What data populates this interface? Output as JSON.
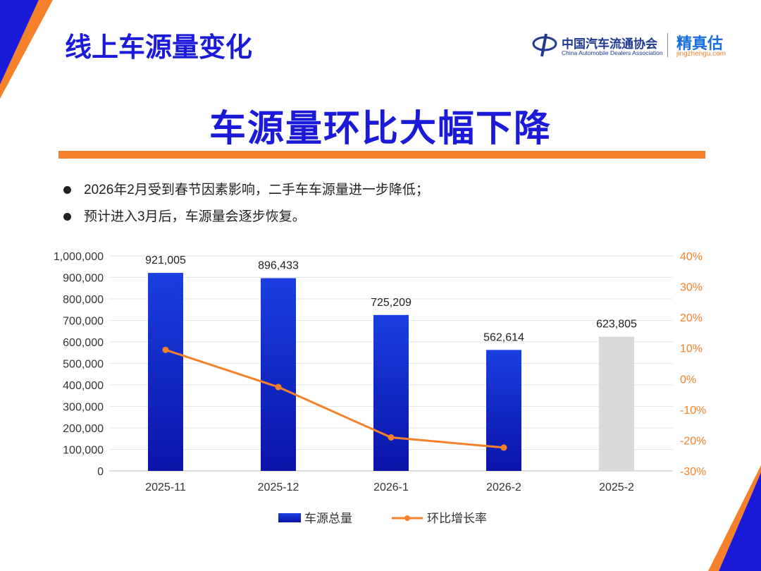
{
  "header": {
    "title": "线上车源量变化",
    "headline": "车源量环比大幅下降"
  },
  "logo": {
    "org_cn": "中国汽车流通协会",
    "org_en": "China Automobile Dealers Association",
    "brand_cn": "精真估",
    "brand_url": "jingzhengu.com"
  },
  "bullets": [
    "2026年2月受到春节因素影响，二手车车源量进一步降低；",
    "预计进入3月后，车源量会逐步恢复。"
  ],
  "colors": {
    "accent": "#1a1ad8",
    "orange": "#f5822a",
    "bar_top": "#1a3ee0",
    "bar_bottom": "#0a14a8",
    "gray_bar": "#d9d9d9"
  },
  "chart_data": {
    "type": "bar",
    "categories": [
      "2025-11",
      "2025-12",
      "2026-1",
      "2026-2",
      "2025-2"
    ],
    "series": [
      {
        "name": "车源总量",
        "type": "bar",
        "axis": "left",
        "values": [
          921005,
          896433,
          725209,
          562614,
          623805
        ],
        "labels": [
          "921,005",
          "896,433",
          "725,209",
          "562,614",
          "623,805"
        ],
        "highlight": [
          false,
          false,
          false,
          false,
          true
        ]
      },
      {
        "name": "环比增长率",
        "type": "line",
        "axis": "right",
        "values": [
          9.4,
          -2.7,
          -19.1,
          -22.4,
          null
        ]
      }
    ],
    "ylim": [
      0,
      1000000
    ],
    "yticks": [
      "0",
      "100,000",
      "200,000",
      "300,000",
      "400,000",
      "500,000",
      "600,000",
      "700,000",
      "800,000",
      "900,000",
      "1,000,000"
    ],
    "y2lim": [
      -30,
      40
    ],
    "y2ticks": [
      "-30%",
      "-20%",
      "-10%",
      "0%",
      "10%",
      "20%",
      "30%",
      "40%"
    ],
    "grid": true,
    "legend_position": "bottom"
  }
}
